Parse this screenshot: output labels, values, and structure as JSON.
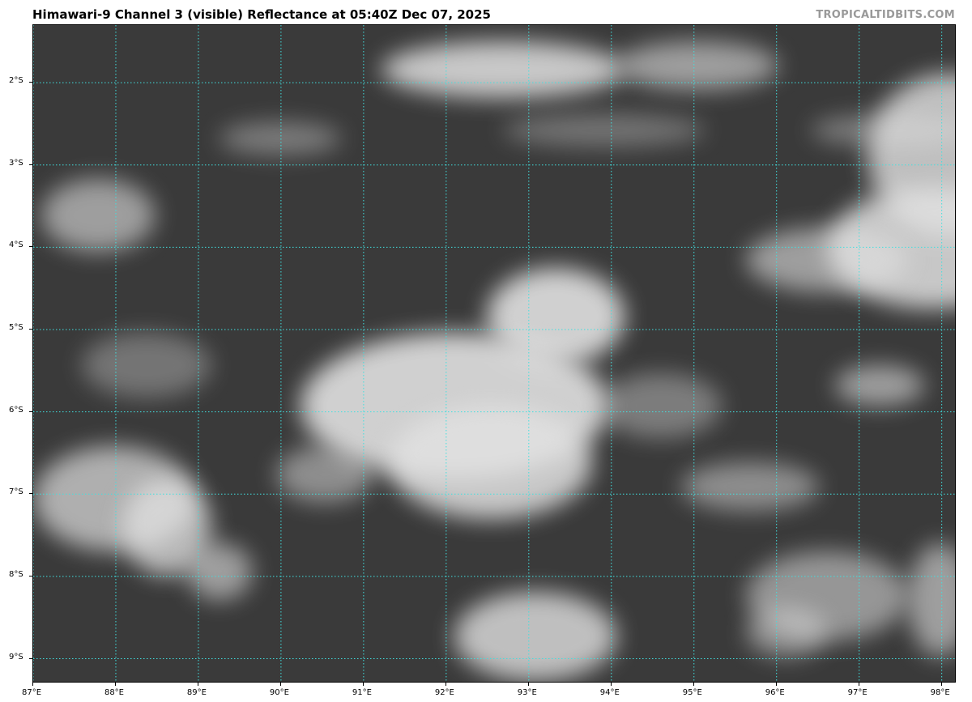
{
  "title": "Himawari-9 Channel 3 (visible) Reflectance at 05:40Z Dec 07, 2025",
  "watermark": "TROPICALTIDBITS.COM",
  "map": {
    "projection": "lat-lon",
    "imagery": "visible reflectance, grayscale",
    "gridline_color": "#40e0e0",
    "extent": {
      "lon_min": 87.0,
      "lon_max": 98.18,
      "lat_min": -9.3,
      "lat_max": -1.3
    },
    "lon_ticks": [
      {
        "value": 87,
        "label": "87°E"
      },
      {
        "value": 88,
        "label": "88°E"
      },
      {
        "value": 89,
        "label": "89°E"
      },
      {
        "value": 90,
        "label": "90°E"
      },
      {
        "value": 91,
        "label": "91°E"
      },
      {
        "value": 92,
        "label": "92°E"
      },
      {
        "value": 93,
        "label": "93°E"
      },
      {
        "value": 94,
        "label": "94°E"
      },
      {
        "value": 95,
        "label": "95°E"
      },
      {
        "value": 96,
        "label": "96°E"
      },
      {
        "value": 97,
        "label": "97°E"
      },
      {
        "value": 98,
        "label": "98°E"
      }
    ],
    "lat_ticks": [
      {
        "value": -2,
        "label": "2°S"
      },
      {
        "value": -3,
        "label": "3°S"
      },
      {
        "value": -4,
        "label": "4°S"
      },
      {
        "value": -5,
        "label": "5°S"
      },
      {
        "value": -6,
        "label": "6°S"
      },
      {
        "value": -7,
        "label": "7°S"
      },
      {
        "value": -8,
        "label": "8°S"
      },
      {
        "value": -9,
        "label": "9°S"
      }
    ]
  }
}
